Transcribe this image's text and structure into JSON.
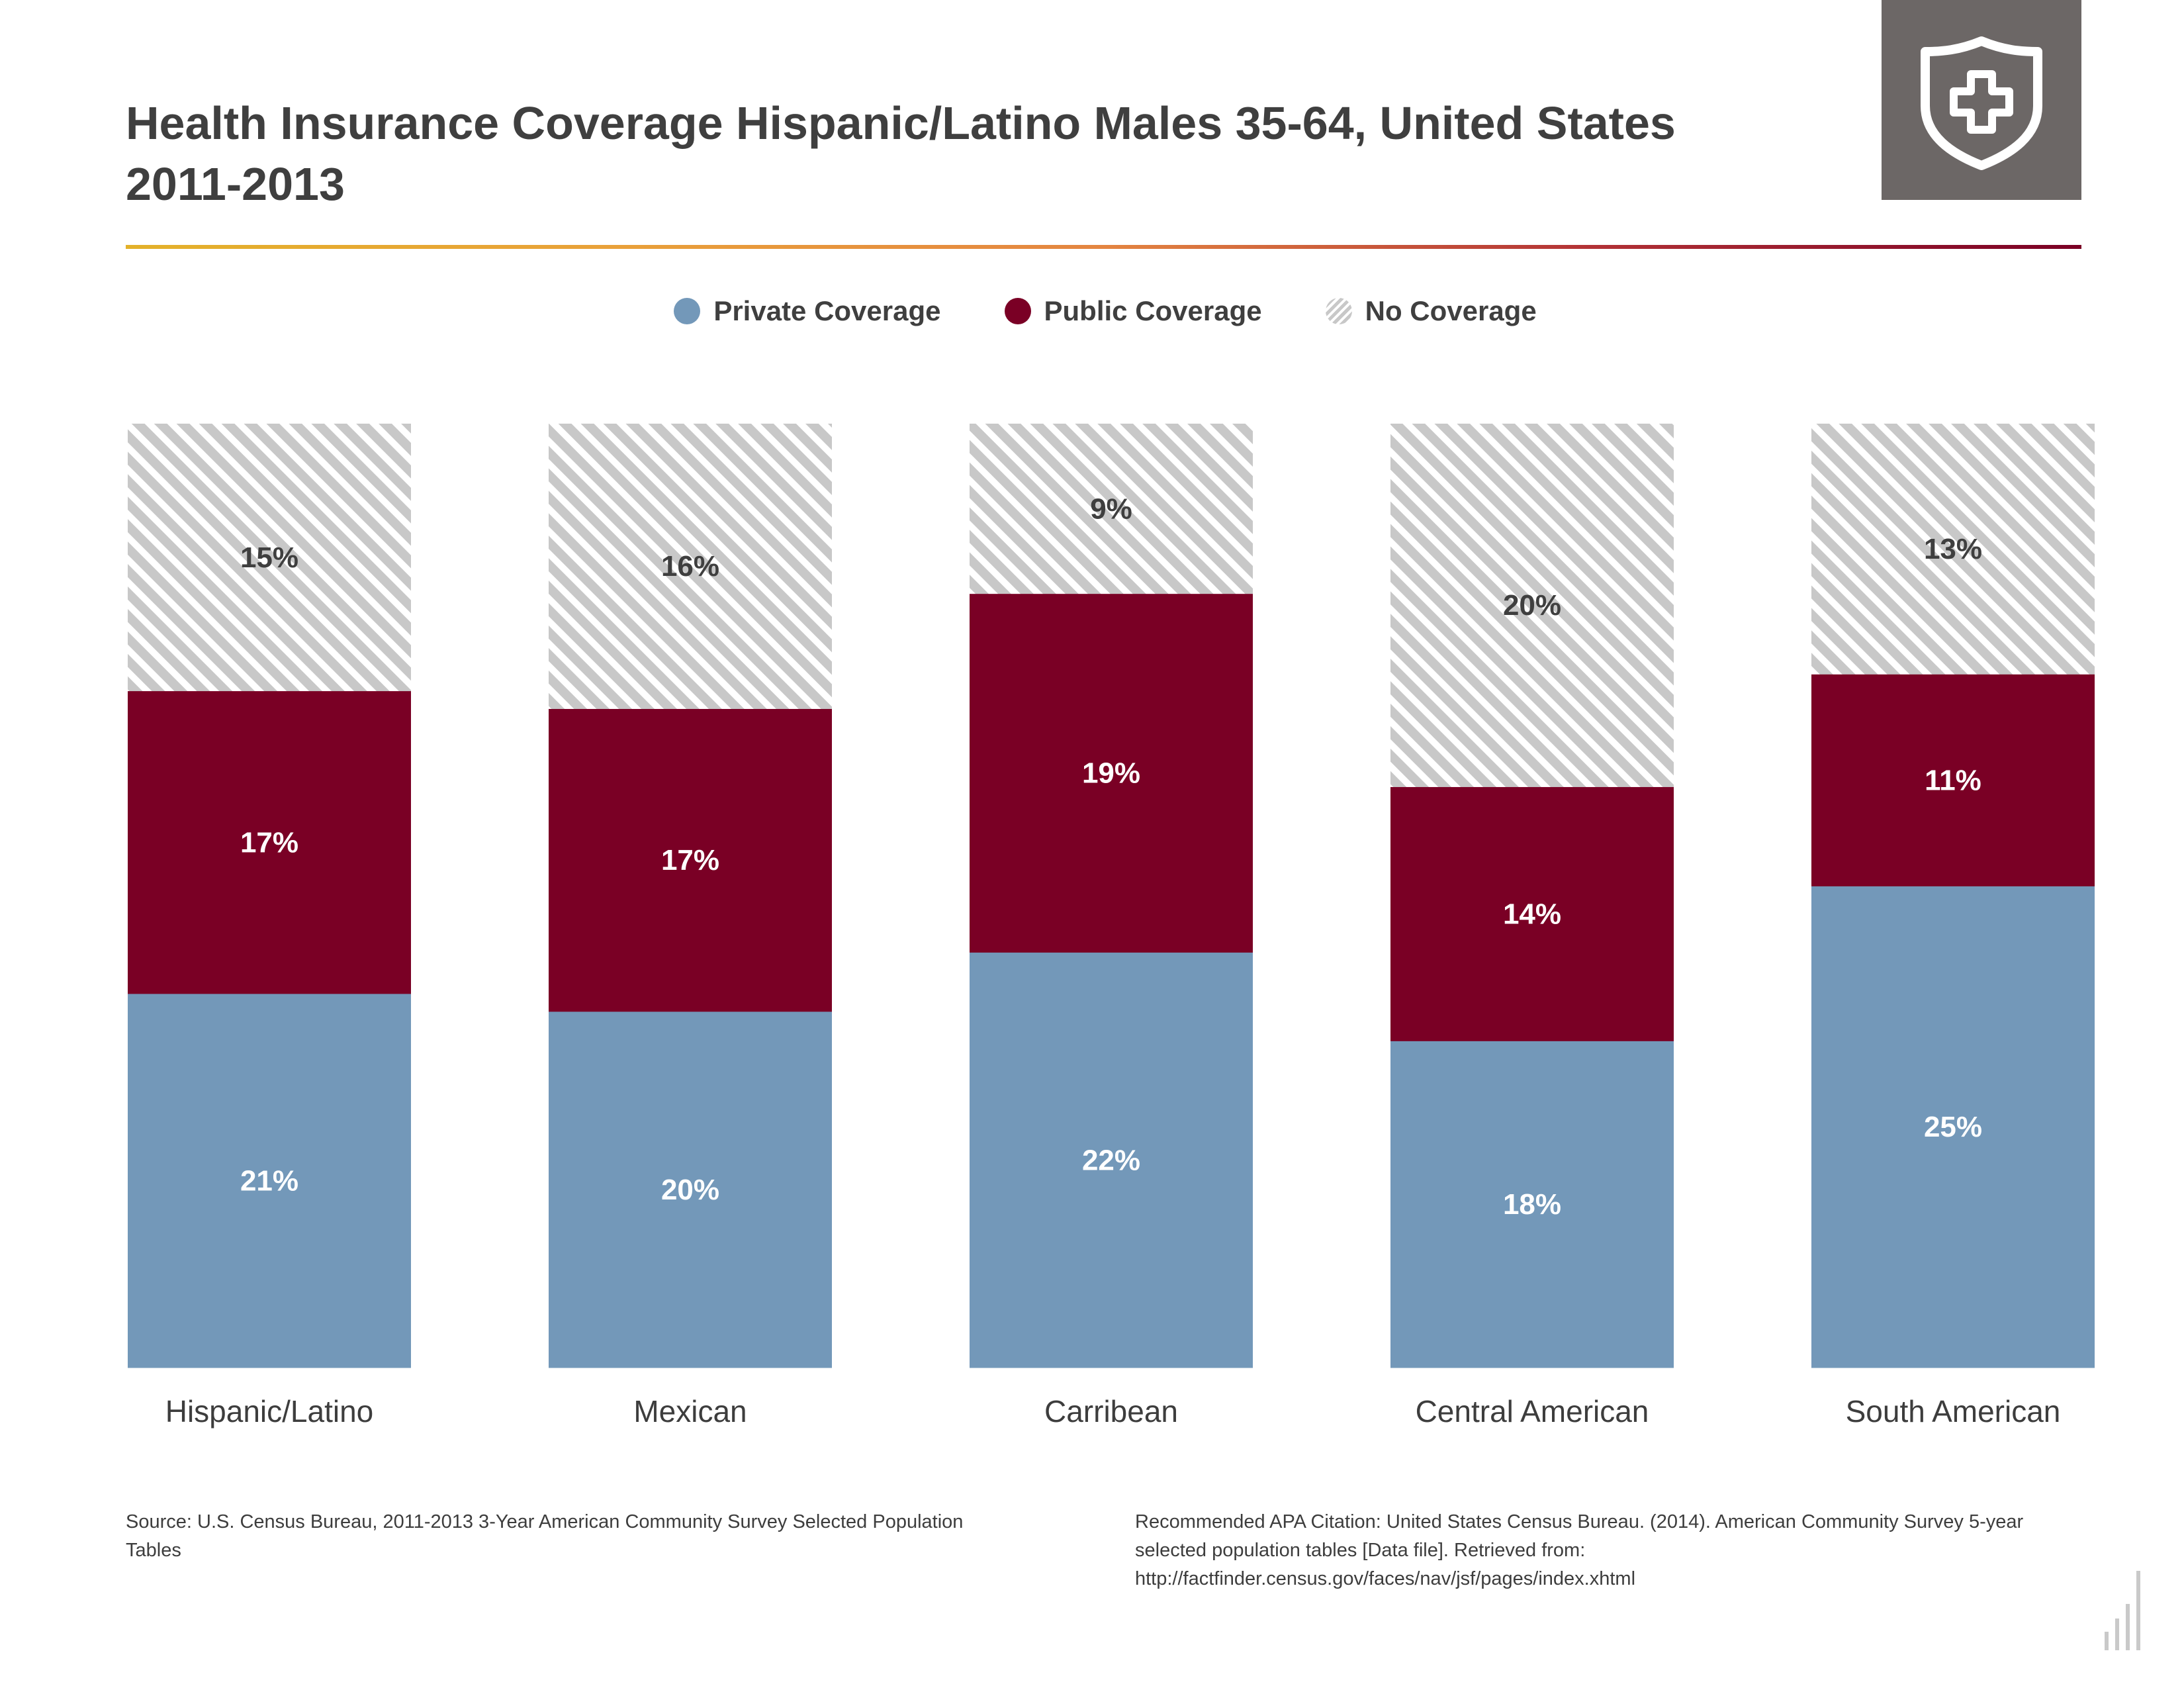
{
  "header": {
    "title_line1": "Health Insurance Coverage Hispanic/Latino Males 35-64, United States",
    "title_line2": "2011-2013"
  },
  "icon": "shield-cross-icon",
  "legend": [
    {
      "label": "Private Coverage",
      "color": "#7398b9"
    },
    {
      "label": "Public Coverage",
      "color": "#7a0025"
    },
    {
      "label": "No Coverage",
      "color": "#c8c8c8"
    }
  ],
  "chart_data": {
    "type": "bar",
    "stacked": true,
    "title": "Health Insurance Coverage Hispanic/Latino Males 35-64, United States 2011-2013",
    "categories": [
      "Hispanic/Latino",
      "Mexican",
      "Carribean",
      "Central American",
      "South American"
    ],
    "series": [
      {
        "name": "Private Coverage",
        "color": "#7398b9",
        "values": [
          21,
          20,
          22,
          18,
          25
        ],
        "labels": [
          "21%",
          "20%",
          "22%",
          "18%",
          "25%"
        ]
      },
      {
        "name": "Public Coverage",
        "color": "#7a0025",
        "values": [
          17,
          17,
          19,
          14,
          11
        ],
        "labels": [
          "17%",
          "17%",
          "19%",
          "14%",
          "11%"
        ]
      },
      {
        "name": "No Coverage",
        "color": "#c8c8c8",
        "pattern": "hatched",
        "values": [
          15,
          16,
          9,
          20,
          13
        ],
        "labels": [
          "15%",
          "16%",
          "9%",
          "20%",
          "13%"
        ]
      }
    ],
    "xlabel": "",
    "ylabel": "",
    "grid": false,
    "legend_position": "top-center"
  },
  "footer": {
    "source": "Source: U.S. Census Bureau, 2011-2013 3-Year American Community Survey Selected Population Tables",
    "citation": "Recommended APA Citation: United States Census Bureau. (2014). American Community Survey 5-year selected population tables [Data file]. Retrieved from: http://factfinder.census.gov/faces/nav/jsf/pages/index.xhtml"
  }
}
